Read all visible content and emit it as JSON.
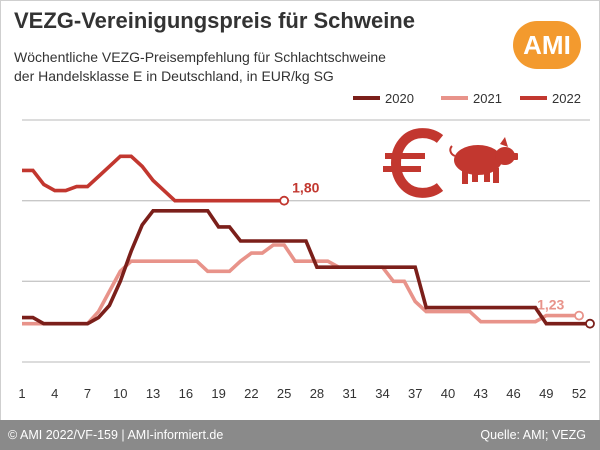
{
  "header": {
    "title": "VEZG-Vereinigungspreis für Schweine",
    "subtitle_line1": "Wöchentliche VEZG-Preisempfehlung für Schlachtschweine",
    "subtitle_line2": "der Handelsklasse E in Deutschland, in EUR/kg SG",
    "logo_text": "AMI"
  },
  "footer": {
    "left_text": "© AMI 2022/VF-159 | AMI-informiert.de",
    "right_text": "Quelle: AMI; VEZG"
  },
  "colors": {
    "s2020": "#7b1f1a",
    "s2021": "#e8938a",
    "s2022": "#c2372f",
    "grid": "#c8c8c8",
    "footer_bg": "#8a8a8a",
    "logo": "#f39a2e",
    "text": "#333333"
  },
  "icons": [
    "euro-icon",
    "pig-icon"
  ],
  "chart_data": {
    "type": "line",
    "title": "VEZG-Vereinigungspreis für Schweine",
    "xlabel": "",
    "ylabel": "",
    "xlim": [
      1,
      53
    ],
    "ylim": [
      1.0,
      2.2
    ],
    "x_ticks": [
      1,
      4,
      7,
      10,
      13,
      16,
      19,
      22,
      25,
      28,
      31,
      34,
      37,
      40,
      43,
      46,
      49,
      52
    ],
    "grid_y": true,
    "legend_position": "top-right",
    "series": [
      {
        "name": "2020",
        "color": "#7b1f1a",
        "x": [
          1,
          2,
          3,
          4,
          5,
          6,
          7,
          8,
          9,
          10,
          11,
          12,
          13,
          14,
          15,
          16,
          17,
          18,
          19,
          20,
          21,
          22,
          23,
          24,
          25,
          26,
          27,
          28,
          29,
          30,
          31,
          32,
          33,
          34,
          35,
          36,
          37,
          38,
          39,
          40,
          41,
          42,
          43,
          44,
          45,
          46,
          47,
          48,
          49,
          50,
          51,
          52,
          53
        ],
        "values": [
          1.22,
          1.22,
          1.19,
          1.19,
          1.19,
          1.19,
          1.19,
          1.22,
          1.28,
          1.4,
          1.55,
          1.68,
          1.75,
          1.75,
          1.75,
          1.75,
          1.75,
          1.75,
          1.67,
          1.67,
          1.6,
          1.6,
          1.6,
          1.6,
          1.6,
          1.6,
          1.6,
          1.47,
          1.47,
          1.47,
          1.47,
          1.47,
          1.47,
          1.47,
          1.47,
          1.47,
          1.47,
          1.27,
          1.27,
          1.27,
          1.27,
          1.27,
          1.27,
          1.27,
          1.27,
          1.27,
          1.27,
          1.27,
          1.19,
          1.19,
          1.19,
          1.19,
          1.19
        ]
      },
      {
        "name": "2021",
        "color": "#e8938a",
        "x": [
          1,
          2,
          3,
          4,
          5,
          6,
          7,
          8,
          9,
          10,
          11,
          12,
          13,
          14,
          15,
          16,
          17,
          18,
          19,
          20,
          21,
          22,
          23,
          24,
          25,
          26,
          27,
          28,
          29,
          30,
          31,
          32,
          33,
          34,
          35,
          36,
          37,
          38,
          39,
          40,
          41,
          42,
          43,
          44,
          45,
          46,
          47,
          48,
          49,
          50,
          51,
          52
        ],
        "values": [
          1.19,
          1.19,
          1.19,
          1.19,
          1.19,
          1.19,
          1.19,
          1.25,
          1.35,
          1.45,
          1.5,
          1.5,
          1.5,
          1.5,
          1.5,
          1.5,
          1.5,
          1.45,
          1.45,
          1.45,
          1.5,
          1.54,
          1.54,
          1.58,
          1.58,
          1.5,
          1.5,
          1.5,
          1.5,
          1.47,
          1.47,
          1.47,
          1.47,
          1.47,
          1.4,
          1.4,
          1.3,
          1.25,
          1.25,
          1.25,
          1.25,
          1.25,
          1.2,
          1.2,
          1.2,
          1.2,
          1.2,
          1.2,
          1.23,
          1.23,
          1.23,
          1.23
        ]
      },
      {
        "name": "2022",
        "color": "#c2372f",
        "x": [
          1,
          2,
          3,
          4,
          5,
          6,
          7,
          8,
          9,
          10,
          11,
          12,
          13,
          14,
          15,
          16,
          17,
          18,
          19,
          20,
          21,
          22,
          23,
          24,
          25
        ],
        "values": [
          1.95,
          1.95,
          1.88,
          1.85,
          1.85,
          1.87,
          1.87,
          1.92,
          1.97,
          2.02,
          2.02,
          1.97,
          1.9,
          1.85,
          1.8,
          1.8,
          1.8,
          1.8,
          1.8,
          1.8,
          1.8,
          1.8,
          1.8,
          1.8,
          1.8
        ]
      }
    ],
    "annotations": [
      {
        "series": "2022",
        "x": 25,
        "label": "1,80"
      },
      {
        "series": "2021",
        "x": 52,
        "label": "1,23"
      }
    ]
  }
}
